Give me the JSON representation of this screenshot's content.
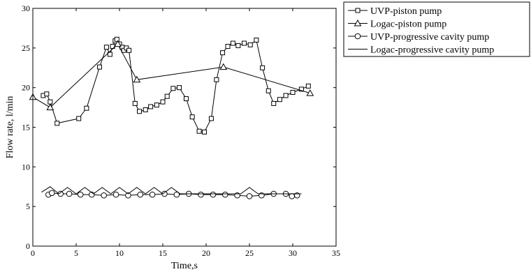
{
  "chart_data": {
    "type": "line",
    "xlabel": "Time,s",
    "ylabel": "Flow rate, l/min",
    "xlim": [
      0,
      35
    ],
    "ylim": [
      0,
      30
    ],
    "xticks": [
      0,
      5,
      10,
      15,
      20,
      25,
      30,
      35
    ],
    "yticks": [
      0,
      5,
      10,
      15,
      20,
      25,
      30
    ],
    "xtick_labels": [
      "0",
      "5",
      "10",
      "15",
      "20",
      "25",
      "30",
      "35"
    ],
    "ytick_labels": [
      "0",
      "5",
      "10",
      "15",
      "20",
      "25",
      "30"
    ],
    "grid": false,
    "legend_position": "outside-top-right",
    "series": [
      {
        "name": "UVP-piston pump",
        "marker": "square",
        "color": "#000000",
        "x": [
          1.2,
          1.6,
          2.0,
          2.8,
          5.3,
          6.2,
          7.7,
          8.5,
          8.9,
          9.2,
          9.5,
          9.7,
          10.0,
          10.3,
          10.5,
          10.8,
          11.1,
          11.8,
          12.3,
          13.0,
          13.6,
          14.3,
          15.0,
          15.5,
          16.2,
          16.9,
          17.7,
          18.4,
          19.2,
          19.8,
          20.6,
          21.2,
          21.9,
          22.5,
          23.1,
          23.7,
          24.4,
          25.1,
          25.8,
          26.5,
          27.2,
          27.8,
          28.5,
          29.2,
          30.0,
          31.0,
          31.8
        ],
        "y": [
          19.0,
          19.2,
          18.2,
          15.5,
          16.1,
          17.4,
          22.6,
          25.1,
          24.2,
          25.2,
          25.9,
          26.1,
          25.5,
          25.1,
          24.7,
          25.0,
          24.7,
          18.0,
          17.0,
          17.2,
          17.6,
          17.8,
          18.2,
          18.9,
          19.9,
          20.0,
          18.6,
          16.3,
          14.5,
          14.4,
          16.1,
          21.0,
          24.4,
          25.2,
          25.6,
          25.3,
          25.6,
          25.4,
          26.0,
          22.5,
          19.6,
          18.0,
          18.5,
          19.0,
          19.4,
          19.8,
          20.2
        ]
      },
      {
        "name": "Logac-piston pump",
        "marker": "triangle",
        "color": "#000000",
        "x": [
          0.0,
          2.0,
          9.8,
          12.0,
          22.0,
          32.0
        ],
        "y": [
          18.8,
          17.5,
          25.5,
          21.0,
          22.6,
          19.3
        ]
      },
      {
        "name": "UVP-progressive cavity pump",
        "marker": "circle",
        "color": "#000000",
        "x": [
          1.8,
          2.2,
          3.2,
          4.2,
          5.5,
          6.8,
          8.2,
          9.6,
          11.0,
          12.4,
          13.8,
          15.2,
          16.6,
          18.0,
          19.4,
          20.8,
          22.2,
          23.6,
          25.0,
          26.4,
          27.8,
          29.2,
          29.9,
          30.5
        ],
        "y": [
          6.5,
          6.7,
          6.6,
          6.6,
          6.5,
          6.5,
          6.4,
          6.5,
          6.4,
          6.5,
          6.5,
          6.6,
          6.5,
          6.6,
          6.5,
          6.5,
          6.5,
          6.4,
          6.3,
          6.4,
          6.6,
          6.6,
          6.3,
          6.4
        ]
      },
      {
        "name": "Logac-progressive cavity pump",
        "marker": "none",
        "color": "#000000",
        "x": [
          1.0,
          2.0,
          3.0,
          4.0,
          5.0,
          6.0,
          7.0,
          8.0,
          9.0,
          10.0,
          11.0,
          12.0,
          13.0,
          14.0,
          15.0,
          16.0,
          17.0,
          18.0,
          19.0,
          20.0,
          21.0,
          22.0,
          23.0,
          24.0,
          25.0,
          26.0,
          27.0,
          28.0,
          29.0,
          30.0,
          31.0
        ],
        "y": [
          6.8,
          7.5,
          6.6,
          7.4,
          6.6,
          7.4,
          6.6,
          7.4,
          6.6,
          7.4,
          6.6,
          7.4,
          6.6,
          7.4,
          6.6,
          7.4,
          6.6,
          6.6,
          6.6,
          6.6,
          6.6,
          6.6,
          6.6,
          6.6,
          7.4,
          6.6,
          6.6,
          6.6,
          6.6,
          6.6,
          6.6
        ]
      }
    ]
  }
}
